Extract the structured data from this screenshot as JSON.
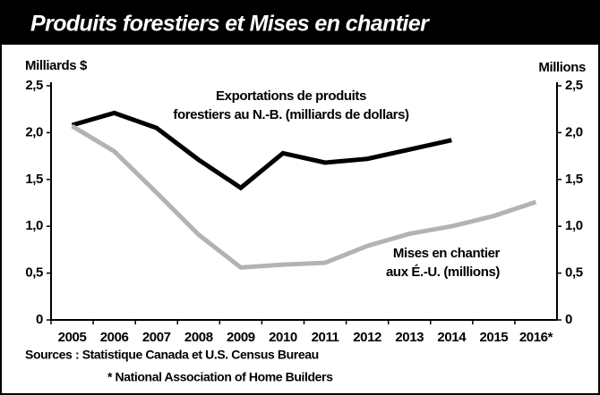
{
  "chart_data": {
    "type": "line",
    "title": "Produits forestiers et Mises en chantier",
    "y_label": "Milliards $",
    "y2_label": "Millions",
    "categories": [
      "2005",
      "2006",
      "2007",
      "2008",
      "2009",
      "2010",
      "2011",
      "2012",
      "2013",
      "2014",
      "2015",
      "2016*"
    ],
    "series": [
      {
        "label": [
          "Exportations de produits",
          "forestiers au N.-B. (milliards de dollars)"
        ],
        "color": "#000000",
        "axis": "y",
        "values": [
          2.08,
          2.21,
          2.05,
          1.71,
          1.41,
          1.78,
          1.68,
          1.72,
          1.82,
          1.92,
          null,
          null
        ]
      },
      {
        "label": [
          "Mises en chantier",
          "aux É.-U. (millions)"
        ],
        "color": "#b3b3b3",
        "axis": "y2",
        "values": [
          2.07,
          1.8,
          1.36,
          0.91,
          0.56,
          0.59,
          0.61,
          0.79,
          0.92,
          1.0,
          1.11,
          1.26
        ]
      }
    ],
    "ylim": [
      0,
      2.5
    ],
    "yticks": [
      0,
      {
        "value": 0.5,
        "label": "0,5"
      },
      {
        "value": 1,
        "label": "1,0"
      },
      {
        "value": 1.5,
        "label": "1,5"
      },
      {
        "value": 2,
        "label": "2,0"
      },
      {
        "value": 2.5,
        "label": "2,5"
      }
    ],
    "y2lim": [
      0,
      2.5
    ],
    "y2ticks": [
      0,
      {
        "value": 0.5,
        "label": "0,5"
      },
      {
        "value": 1,
        "label": "1,0"
      },
      {
        "value": 1.5,
        "label": "1,5"
      },
      {
        "value": 2,
        "label": "2,0"
      },
      {
        "value": 2.5,
        "label": "2,5"
      }
    ],
    "notes": [
      "Sources : Statistique Canada et U.S. Census Bureau",
      "* National Association of Home Builders"
    ]
  }
}
